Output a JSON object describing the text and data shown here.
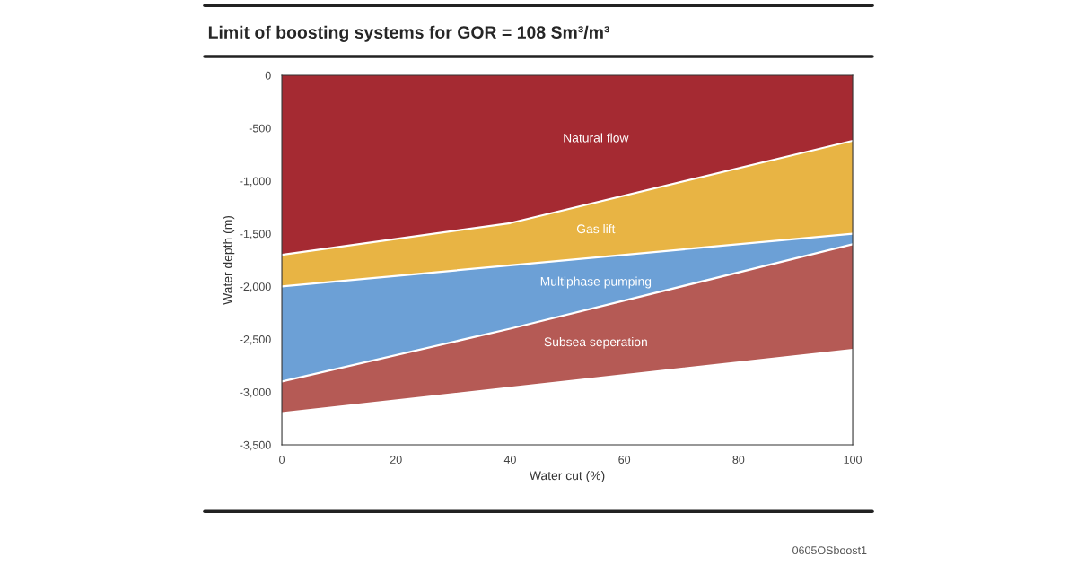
{
  "chart_data": {
    "type": "area",
    "stacked": true,
    "title": "Limit of boosting systems for GOR = 108 Sm³/m³",
    "xlabel": "Water cut (%)",
    "ylabel": "Water depth (m)",
    "x": [
      0,
      40,
      100
    ],
    "series": [
      {
        "name": "Natural flow",
        "color": "#a52a32",
        "values": [
          -1700,
          -1400,
          -620
        ]
      },
      {
        "name": "Gas lift",
        "color": "#e8b444",
        "values": [
          -300,
          -400,
          -880
        ]
      },
      {
        "name": "Multiphase pumping",
        "color": "#6ca0d6",
        "values": [
          -900,
          -600,
          -100
        ]
      },
      {
        "name": "Subsea seperation",
        "color": "#b55a55",
        "values": [
          -300,
          -560,
          -1000
        ]
      }
    ],
    "xlim": [
      0,
      100
    ],
    "xticks": [
      0,
      20,
      40,
      60,
      80,
      100
    ],
    "ylim": [
      -3500,
      0
    ],
    "yticks": [
      {
        "value": -3500,
        "label": "-3,500"
      },
      {
        "value": -3000,
        "label": "-3,000"
      },
      {
        "value": -2500,
        "label": "-2,500"
      },
      {
        "value": -2000,
        "label": "-2,000"
      },
      {
        "value": -1500,
        "label": "-1,500"
      },
      {
        "value": -1000,
        "label": "-1,000"
      },
      -500,
      0
    ],
    "grid": false,
    "legend": false,
    "annotations": [
      "0605OSboost1"
    ]
  }
}
